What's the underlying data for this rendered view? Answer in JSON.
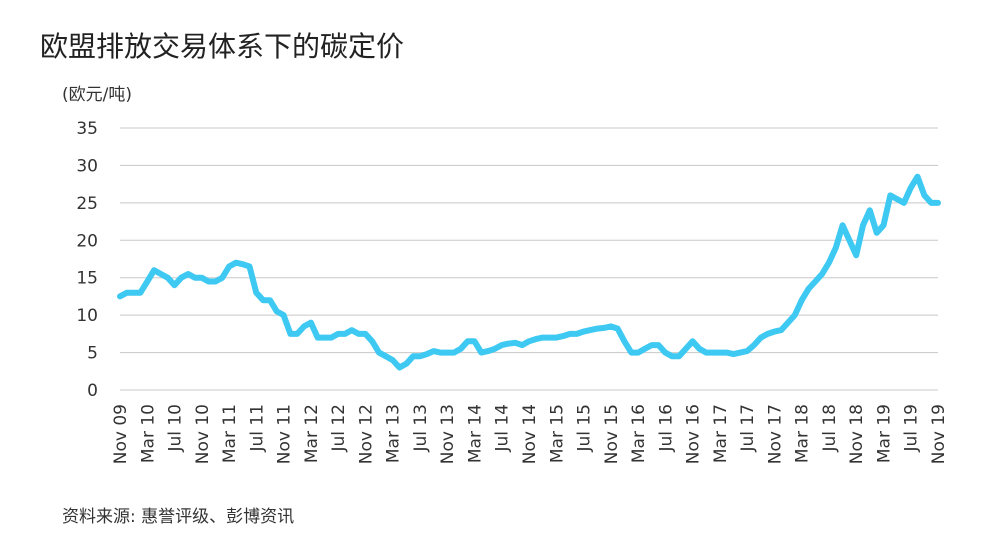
{
  "chart_data": {
    "type": "line",
    "title": "欧盟排放交易体系下的碳定价",
    "y_label": "(欧元/吨)",
    "source": "资料来源: 惠誉评级、彭博资讯",
    "categories": [
      "Nov 09",
      null,
      null,
      null,
      "Mar 10",
      null,
      null,
      null,
      "Jul 10",
      null,
      null,
      null,
      "Nov 10",
      null,
      null,
      null,
      "Mar 11",
      null,
      null,
      null,
      "Jul 11",
      null,
      null,
      null,
      "Nov 11",
      null,
      null,
      null,
      "Mar 12",
      null,
      null,
      null,
      "Jul 12",
      null,
      null,
      null,
      "Nov 12",
      null,
      null,
      null,
      "Mar 13",
      null,
      null,
      null,
      "Jul 13",
      null,
      null,
      null,
      "Nov 13",
      null,
      null,
      null,
      "Mar 14",
      null,
      null,
      null,
      "Jul 14",
      null,
      null,
      null,
      "Nov 14",
      null,
      null,
      null,
      "Mar 15",
      null,
      null,
      null,
      "Jul 15",
      null,
      null,
      null,
      "Nov 15",
      null,
      null,
      null,
      "Mar 16",
      null,
      null,
      null,
      "Jul 16",
      null,
      null,
      null,
      "Nov 16",
      null,
      null,
      null,
      "Mar 17",
      null,
      null,
      null,
      "Jul 17",
      null,
      null,
      null,
      "Nov 17",
      null,
      null,
      null,
      "Mar 18",
      null,
      null,
      null,
      "Jul 18",
      null,
      null,
      null,
      "Nov 18",
      null,
      null,
      null,
      "Mar 19",
      null,
      null,
      null,
      "Jul 19",
      null,
      null,
      null,
      "Nov 19"
    ],
    "series": [
      {
        "color": "#3ec9f2",
        "values": [
          12.5,
          13,
          13,
          13,
          14.5,
          16,
          15.5,
          15,
          14,
          15,
          15.5,
          15,
          15,
          14.5,
          14.5,
          15,
          16.5,
          17,
          16.8,
          16.5,
          13,
          12,
          12,
          10.5,
          10,
          7.5,
          7.5,
          8.5,
          9,
          7,
          7,
          7,
          7.5,
          7.5,
          8,
          7.5,
          7.5,
          6.5,
          5,
          4.5,
          4,
          3,
          3.5,
          4.5,
          4.5,
          4.8,
          5.2,
          5,
          5,
          5,
          5.5,
          6.5,
          6.5,
          5,
          5.2,
          5.5,
          6,
          6.2,
          6.3,
          6,
          6.5,
          6.8,
          7,
          7,
          7,
          7.2,
          7.5,
          7.5,
          7.8,
          8,
          8.2,
          8.3,
          8.5,
          8.2,
          6.5,
          5,
          5,
          5.5,
          6,
          6,
          5,
          4.5,
          4.5,
          5.5,
          6.5,
          5.5,
          5,
          5,
          5,
          5,
          4.8,
          5,
          5.2,
          6,
          7,
          7.5,
          7.8,
          8,
          9,
          10,
          12,
          13.5,
          14.5,
          15.5,
          17,
          19,
          22,
          20,
          18,
          22,
          24,
          21,
          22,
          26,
          25.5,
          25,
          27,
          28.5,
          26,
          25,
          25
        ]
      }
    ],
    "ylim": [
      0,
      35
    ],
    "yticks": [
      0,
      5,
      10,
      15,
      20,
      25,
      30,
      35
    ],
    "grid": true
  }
}
